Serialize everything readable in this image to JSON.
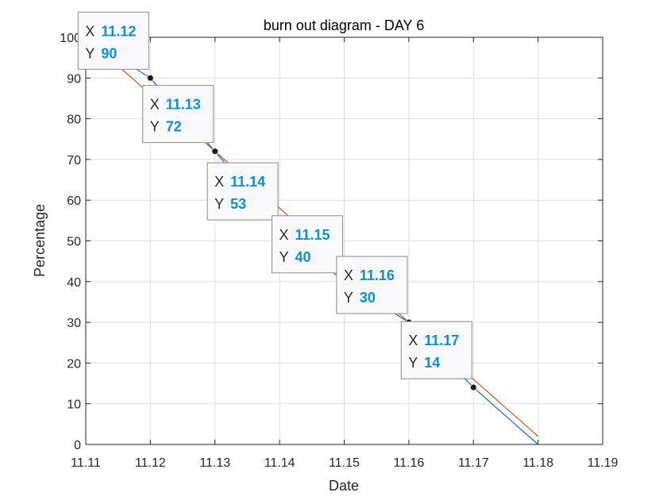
{
  "chart_data": {
    "type": "line",
    "title": "burn out diagram - DAY 6",
    "xlabel": "Date",
    "ylabel": "Percentage",
    "xlim": [
      11.11,
      11.19
    ],
    "ylim": [
      0,
      100
    ],
    "xticks": [
      "11.11",
      "11.12",
      "11.13",
      "11.14",
      "11.15",
      "11.16",
      "11.17",
      "11.18",
      "11.19"
    ],
    "yticks": [
      "0",
      "10",
      "20",
      "30",
      "40",
      "50",
      "60",
      "70",
      "80",
      "90",
      "100"
    ],
    "grid": true,
    "series": [
      {
        "color": "#0072bd",
        "x": [
          11.11,
          11.12,
          11.13,
          11.14,
          11.15,
          11.16,
          11.17,
          11.18
        ],
        "y": [
          100,
          90,
          72,
          53,
          40,
          30,
          14,
          0
        ]
      },
      {
        "color": "#d95319",
        "x": [
          11.11,
          11.18
        ],
        "y": [
          100,
          2
        ]
      }
    ],
    "datatips": [
      {
        "x_label": "X",
        "y_label": "Y",
        "x_text": "11.12",
        "y_text": "90",
        "x": 11.12,
        "y": 90
      },
      {
        "x_label": "X",
        "y_label": "Y",
        "x_text": "11.13",
        "y_text": "72",
        "x": 11.13,
        "y": 72
      },
      {
        "x_label": "X",
        "y_label": "Y",
        "x_text": "11.14",
        "y_text": "53",
        "x": 11.14,
        "y": 53
      },
      {
        "x_label": "X",
        "y_label": "Y",
        "x_text": "11.15",
        "y_text": "40",
        "x": 11.15,
        "y": 40
      },
      {
        "x_label": "X",
        "y_label": "Y",
        "x_text": "11.16",
        "y_text": "30",
        "x": 11.16,
        "y": 30
      },
      {
        "x_label": "X",
        "y_label": "Y",
        "x_text": "11.17",
        "y_text": "14",
        "x": 11.17,
        "y": 14
      }
    ],
    "datatip_value_color": "#0a8fd6"
  }
}
